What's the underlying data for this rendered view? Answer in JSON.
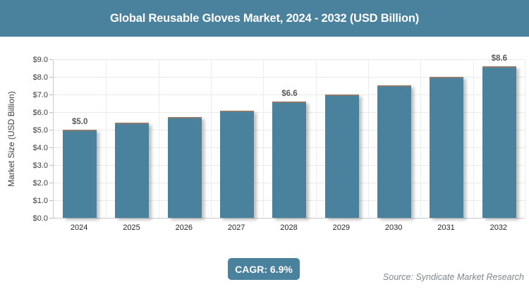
{
  "banner": {
    "title": "Global Reusable Gloves Market, 2024 - 2032 (USD Billion)"
  },
  "chart_data": {
    "type": "bar",
    "title": "Global Reusable Gloves Market, 2024 - 2032 (USD Billion)",
    "categories": [
      "2024",
      "2025",
      "2026",
      "2027",
      "2028",
      "2029",
      "2030",
      "2031",
      "2032"
    ],
    "values": [
      5.0,
      5.4,
      5.7,
      6.1,
      6.6,
      7.0,
      7.5,
      8.0,
      8.6
    ],
    "bar_labels": [
      "$5.0",
      "",
      "",
      "",
      "$6.6",
      "",
      "",
      "",
      "$8.6"
    ],
    "xlabel": "",
    "ylabel": "Market Size (USD Billion)",
    "ylim": [
      0,
      9
    ],
    "ytick_step": 1,
    "ytick_labels": [
      "$0.0",
      "$1.0",
      "$2.0",
      "$3.0",
      "$4.0",
      "$5.0",
      "$6.0",
      "$7.0",
      "$8.0",
      "$9.0"
    ],
    "grid": true,
    "legend": "none",
    "bar_color": "#4a819d"
  },
  "footer": {
    "cagr_badge": "CAGR: 6.9%",
    "source": "Source: Syndicate Market Research"
  },
  "colors": {
    "accent": "#4a819d",
    "bar_top_edge": "#8d7b6e",
    "gridline": "#e9e9e9",
    "axis_line": "#c6cbcf",
    "tick_text": "#3c3c3c",
    "bar_label_text": "#595959",
    "source_text": "#7d868d"
  }
}
